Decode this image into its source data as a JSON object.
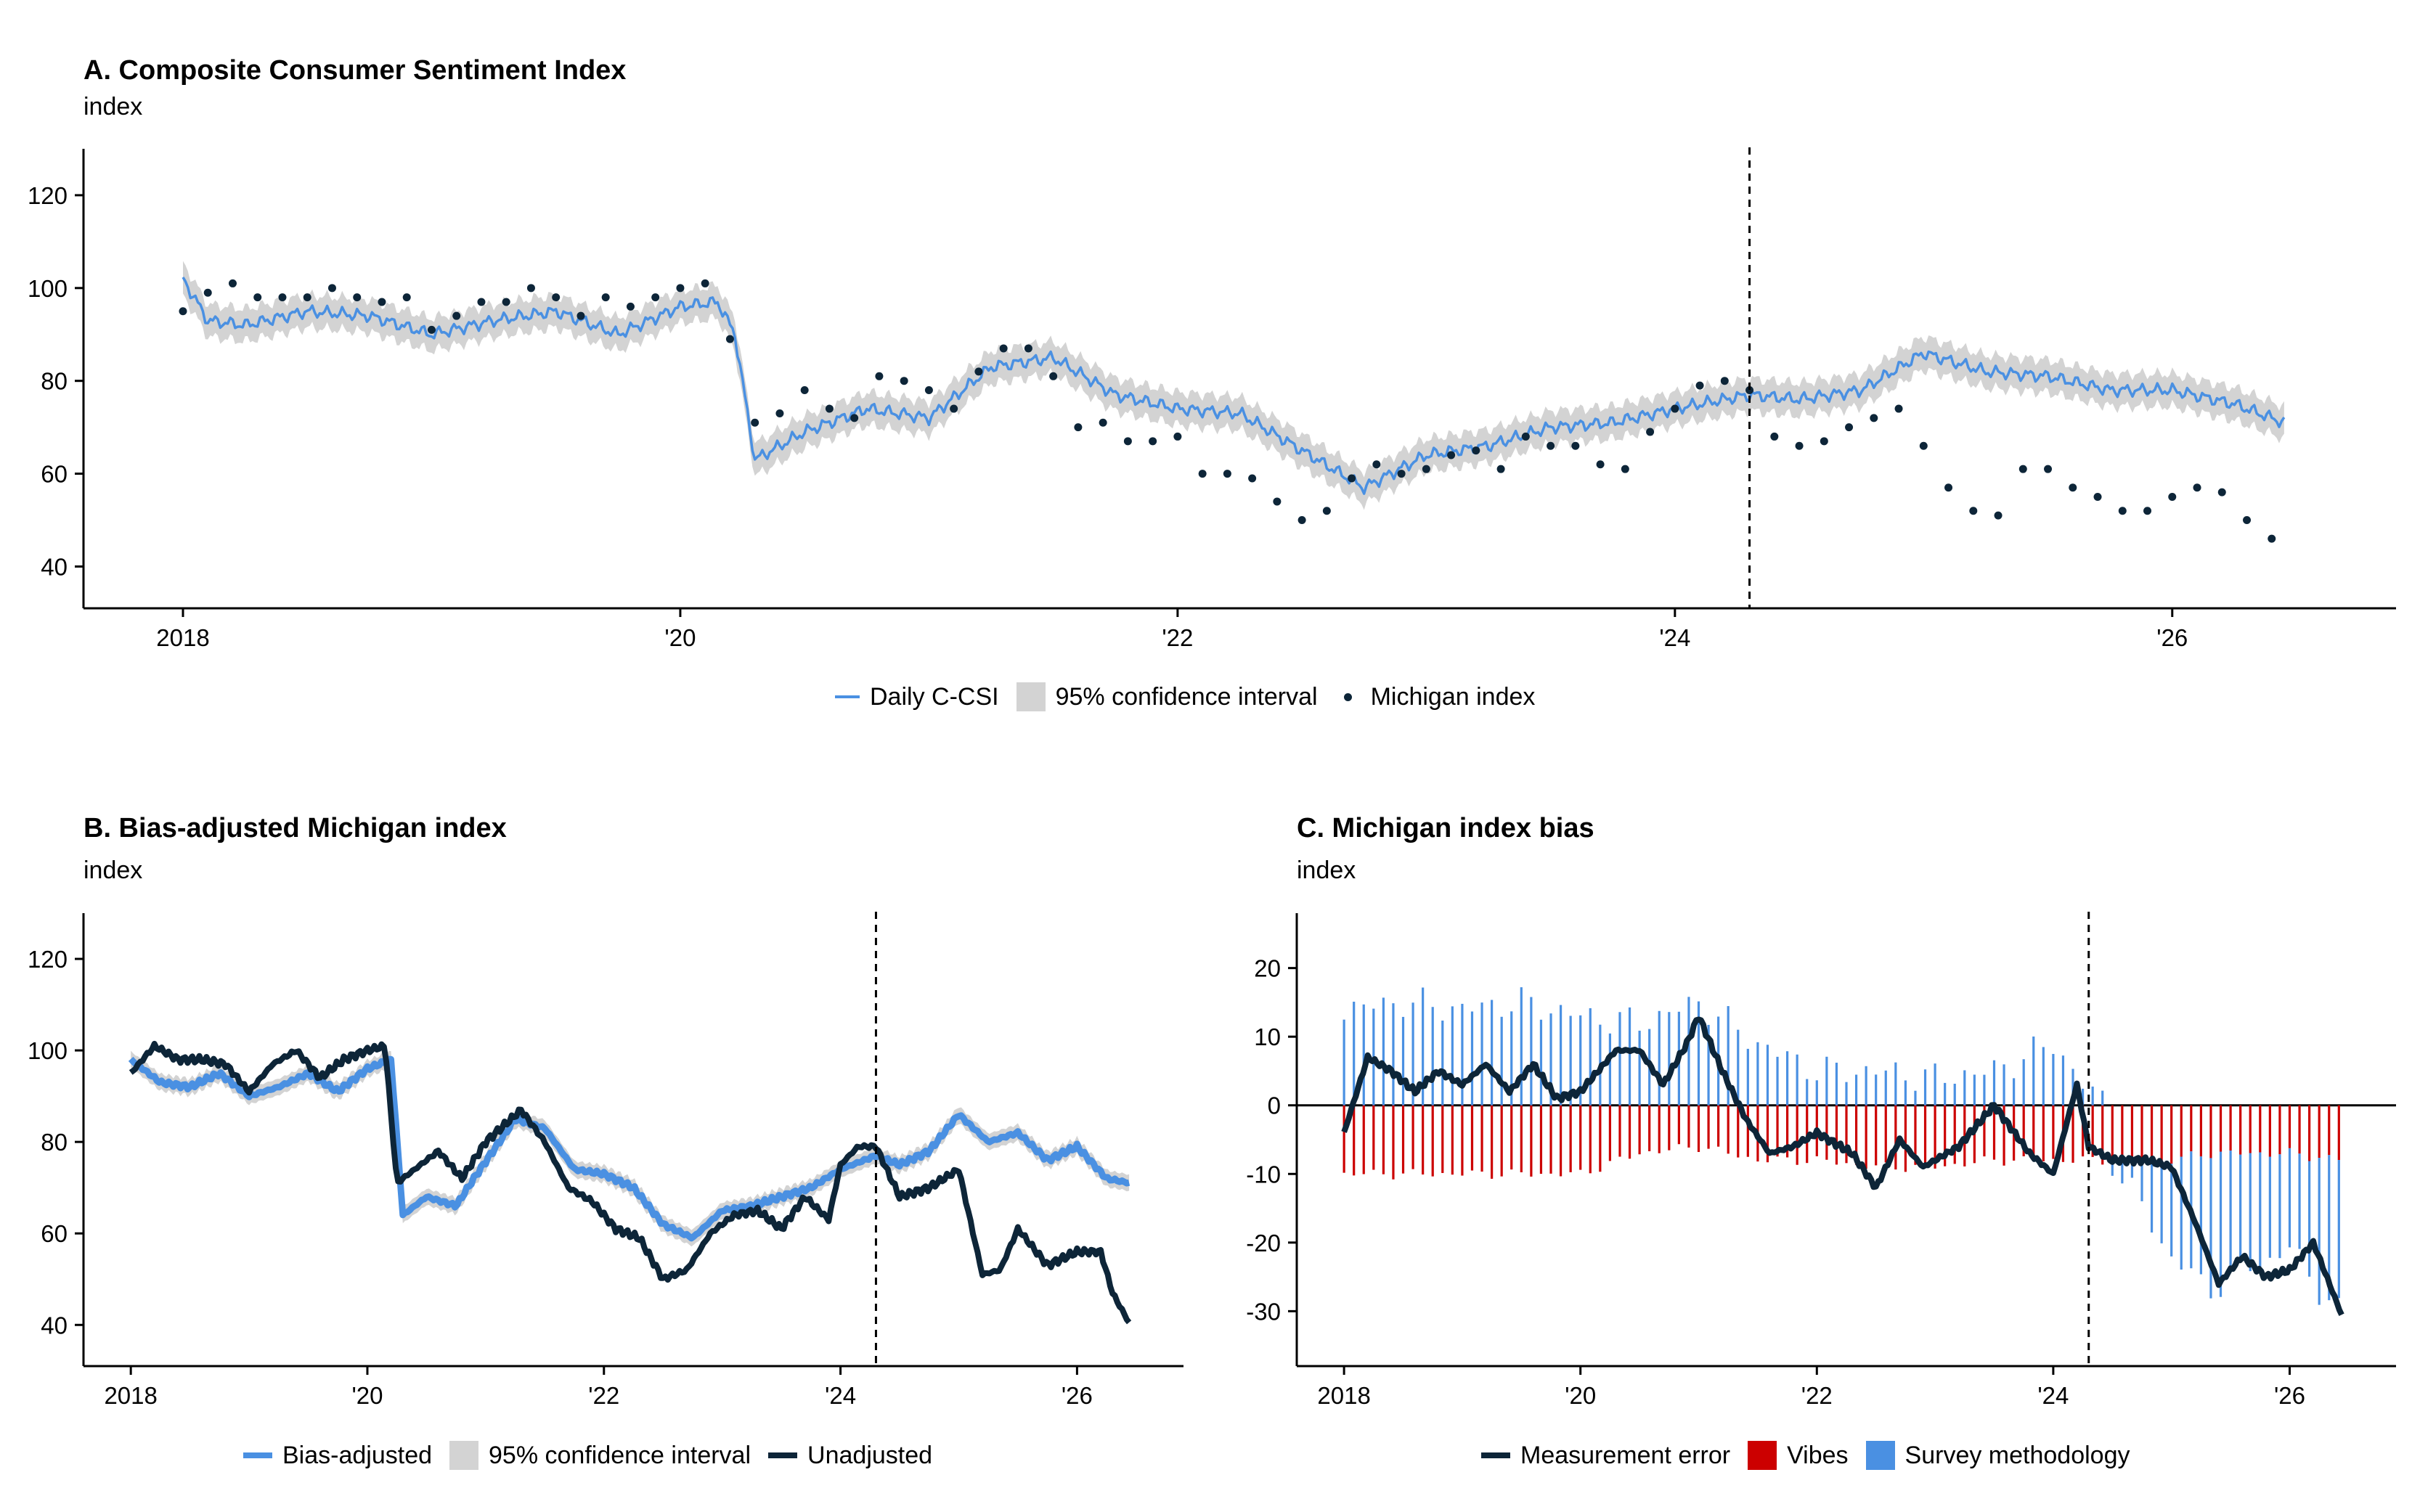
{
  "colors": {
    "blue": "#4a90e2",
    "navy": "#0d2538",
    "gray": "#d3d3d3",
    "red": "#cc0000"
  },
  "panels": {
    "a": {
      "title": "A. Composite Consumer Sentiment Index",
      "subtitle": "index",
      "legend": [
        "Daily C-CSI",
        "95% confidence interval",
        "Michigan index"
      ]
    },
    "b": {
      "title": "B. Bias-adjusted Michigan index",
      "subtitle": "index",
      "legend": [
        "Bias-adjusted",
        "95% confidence interval",
        "Unadjusted"
      ]
    },
    "c": {
      "title": "C. Michigan index bias",
      "subtitle": "index",
      "legend": [
        "Measurement error",
        "Vibes",
        "Survey methodology"
      ]
    }
  },
  "chart_data": [
    {
      "type": "line",
      "title": "A. Composite Consumer Sentiment Index",
      "ylabel": "index",
      "xlim": [
        2017.6,
        2026.9
      ],
      "ylim": [
        31,
        130
      ],
      "xticks": [
        2018,
        2020,
        2022,
        2024,
        2026
      ],
      "xticklabels": [
        "2018",
        "'20",
        "'22",
        "'24",
        "'26"
      ],
      "yticks": [
        40,
        60,
        80,
        100,
        120
      ],
      "vline": 2024.3,
      "series": [
        {
          "name": "Daily C-CSI",
          "style": "line-with-band",
          "band_half_width": 3.5,
          "x": [
            2018.0,
            2018.1,
            2018.25,
            2018.5,
            2018.75,
            2019.0,
            2019.25,
            2019.5,
            2019.75,
            2020.0,
            2020.15,
            2020.22,
            2020.3,
            2020.5,
            2020.75,
            2021.0,
            2021.25,
            2021.5,
            2021.75,
            2022.0,
            2022.25,
            2022.5,
            2022.75,
            2023.0,
            2023.25,
            2023.5,
            2023.75,
            2024.0,
            2024.3,
            2024.5,
            2024.75,
            2025.0,
            2025.25,
            2025.5,
            2025.75,
            2026.0,
            2026.25,
            2026.45
          ],
          "y": [
            102,
            93,
            92,
            95,
            94,
            90,
            93,
            95,
            90,
            96,
            97,
            90,
            63,
            69,
            74,
            72,
            83,
            85,
            77,
            74,
            73,
            65,
            57,
            64,
            66,
            70,
            71,
            74,
            77,
            76,
            78,
            86,
            82,
            81,
            78,
            78,
            75,
            71
          ]
        },
        {
          "name": "Michigan index",
          "style": "dots",
          "x": [
            2018.0,
            2018.1,
            2018.2,
            2018.3,
            2018.4,
            2018.5,
            2018.6,
            2018.7,
            2018.8,
            2018.9,
            2019.0,
            2019.1,
            2019.2,
            2019.3,
            2019.4,
            2019.5,
            2019.6,
            2019.7,
            2019.8,
            2019.9,
            2020.0,
            2020.1,
            2020.2,
            2020.3,
            2020.4,
            2020.5,
            2020.6,
            2020.7,
            2020.8,
            2020.9,
            2021.0,
            2021.1,
            2021.2,
            2021.3,
            2021.4,
            2021.5,
            2021.6,
            2021.7,
            2021.8,
            2021.9,
            2022.0,
            2022.1,
            2022.2,
            2022.3,
            2022.4,
            2022.5,
            2022.6,
            2022.7,
            2022.8,
            2022.9,
            2023.0,
            2023.1,
            2023.2,
            2023.3,
            2023.4,
            2023.5,
            2023.6,
            2023.7,
            2023.8,
            2023.9,
            2024.0,
            2024.1,
            2024.2,
            2024.3,
            2024.4,
            2024.5,
            2024.6,
            2024.7,
            2024.8,
            2024.9,
            2025.0,
            2025.1,
            2025.2,
            2025.3,
            2025.4,
            2025.5,
            2025.6,
            2025.7,
            2025.8,
            2025.9,
            2026.0,
            2026.1,
            2026.2,
            2026.3,
            2026.4
          ],
          "y": [
            95,
            99,
            101,
            98,
            98,
            98,
            100,
            98,
            97,
            98,
            91,
            94,
            97,
            97,
            100,
            98,
            94,
            98,
            96,
            98,
            100,
            101,
            89,
            71,
            73,
            78,
            74,
            72,
            81,
            80,
            78,
            74,
            82,
            87,
            87,
            81,
            70,
            71,
            67,
            67,
            68,
            60,
            60,
            59,
            54,
            50,
            52,
            59,
            62,
            60,
            61,
            64,
            65,
            61,
            68,
            66,
            66,
            62,
            61,
            69,
            74,
            79,
            80,
            78,
            68,
            66,
            67,
            70,
            72,
            74,
            66,
            57,
            52,
            51,
            61,
            61,
            57,
            55,
            52,
            52,
            55,
            57,
            56,
            50,
            46
          ]
        }
      ]
    },
    {
      "type": "line",
      "title": "B. Bias-adjusted Michigan index",
      "ylabel": "index",
      "xlim": [
        2017.6,
        2026.9
      ],
      "ylim": [
        31,
        130
      ],
      "xticks": [
        2018,
        2020,
        2022,
        2024,
        2026
      ],
      "xticklabels": [
        "2018",
        "'20",
        "'22",
        "'24",
        "'26"
      ],
      "yticks": [
        40,
        60,
        80,
        100,
        120
      ],
      "vline": 2024.3,
      "series": [
        {
          "name": "Bias-adjusted",
          "style": "line-with-band",
          "band_half_width": 1.8,
          "x": [
            2018.0,
            2018.25,
            2018.5,
            2018.75,
            2019.0,
            2019.25,
            2019.5,
            2019.75,
            2020.0,
            2020.2,
            2020.3,
            2020.5,
            2020.75,
            2020.9,
            2021.25,
            2021.5,
            2021.75,
            2022.0,
            2022.25,
            2022.5,
            2022.75,
            2023.0,
            2023.25,
            2023.5,
            2023.75,
            2024.0,
            2024.3,
            2024.5,
            2024.75,
            2025.0,
            2025.25,
            2025.5,
            2025.75,
            2026.0,
            2026.25,
            2026.45
          ],
          "y": [
            98,
            93,
            92,
            95,
            90,
            92,
            95,
            91,
            96,
            98,
            64,
            68,
            66,
            72,
            85,
            83,
            74,
            73,
            70,
            62,
            59,
            65,
            66,
            68,
            70,
            74,
            77,
            75,
            78,
            86,
            80,
            82,
            76,
            79,
            72,
            71
          ]
        },
        {
          "name": "Unadjusted",
          "style": "line",
          "x": [
            2018.0,
            2018.2,
            2018.4,
            2018.6,
            2018.8,
            2019.0,
            2019.2,
            2019.4,
            2019.6,
            2019.8,
            2020.0,
            2020.15,
            2020.25,
            2020.35,
            2020.6,
            2020.8,
            2021.0,
            2021.3,
            2021.5,
            2021.7,
            2021.9,
            2022.1,
            2022.3,
            2022.5,
            2022.7,
            2022.9,
            2023.1,
            2023.3,
            2023.5,
            2023.7,
            2023.9,
            2024.0,
            2024.15,
            2024.3,
            2024.5,
            2024.75,
            2025.0,
            2025.2,
            2025.35,
            2025.5,
            2025.75,
            2026.0,
            2026.2,
            2026.3,
            2026.45
          ],
          "y": [
            95,
            101,
            98,
            98,
            97,
            91,
            97,
            100,
            94,
            98,
            100,
            101,
            71,
            73,
            78,
            72,
            80,
            87,
            80,
            70,
            67,
            61,
            59,
            50,
            52,
            60,
            64,
            65,
            61,
            68,
            63,
            75,
            79,
            79,
            68,
            70,
            74,
            51,
            52,
            61,
            53,
            56,
            56,
            47,
            40
          ]
        }
      ]
    },
    {
      "type": "bar",
      "title": "C. Michigan index bias",
      "ylabel": "index",
      "xlim": [
        2017.6,
        2026.9
      ],
      "ylim": [
        -38,
        28
      ],
      "xticks": [
        2018,
        2020,
        2022,
        2024,
        2026
      ],
      "xticklabels": [
        "2018",
        "'20",
        "'22",
        "'24",
        "'26"
      ],
      "yticks": [
        -30,
        -20,
        -10,
        0,
        10,
        20
      ],
      "vline": 2024.3,
      "series": [
        {
          "name": "Vibes",
          "style": "bars",
          "x": [
            2018.0,
            2018.5,
            2019.0,
            2019.5,
            2020.0,
            2020.5,
            2021.0,
            2021.5,
            2022.0,
            2022.5,
            2023.0,
            2023.5,
            2024.0,
            2024.3,
            2024.5,
            2025.0,
            2025.3,
            2025.6,
            2026.0,
            2026.45
          ],
          "y": [
            -10,
            -10,
            -10,
            -10,
            -10,
            -7,
            -6,
            -8,
            -8,
            -9,
            -9,
            -8,
            -8,
            -8,
            -8,
            -8,
            -7,
            -7,
            -7,
            -8
          ]
        },
        {
          "name": "Survey methodology",
          "style": "bars",
          "x": [
            2018.0,
            2018.5,
            2019.0,
            2019.5,
            2020.0,
            2020.5,
            2021.0,
            2021.5,
            2022.0,
            2022.5,
            2023.0,
            2023.5,
            2024.0,
            2024.3,
            2024.5,
            2025.0,
            2025.3,
            2025.6,
            2026.0,
            2026.45
          ],
          "y": [
            14,
            15,
            14,
            15,
            13,
            12,
            15,
            9,
            5,
            5,
            4,
            5,
            9,
            2,
            0,
            -14,
            -20,
            -17,
            -14,
            -23
          ]
        },
        {
          "name": "Measurement error",
          "style": "line",
          "x": [
            2018.0,
            2018.2,
            2018.4,
            2018.6,
            2018.8,
            2019.0,
            2019.2,
            2019.4,
            2019.6,
            2019.8,
            2020.0,
            2020.3,
            2020.5,
            2020.7,
            2020.9,
            2021.0,
            2021.2,
            2021.4,
            2021.6,
            2021.8,
            2022.0,
            2022.3,
            2022.5,
            2022.7,
            2022.9,
            2023.2,
            2023.5,
            2023.8,
            2024.0,
            2024.2,
            2024.3,
            2024.5,
            2024.8,
            2025.0,
            2025.2,
            2025.4,
            2025.6,
            2025.8,
            2026.0,
            2026.2,
            2026.45
          ],
          "y": [
            -4,
            7,
            5,
            2,
            5,
            3,
            6,
            2,
            6,
            1,
            2,
            8,
            8,
            3,
            9,
            13,
            5,
            -2,
            -7,
            -6,
            -4,
            -7,
            -12,
            -5,
            -9,
            -6,
            0,
            -7,
            -10,
            3,
            -6,
            -8,
            -8,
            -9,
            -17,
            -26,
            -22,
            -25,
            -24,
            -20,
            -31
          ]
        }
      ]
    }
  ]
}
